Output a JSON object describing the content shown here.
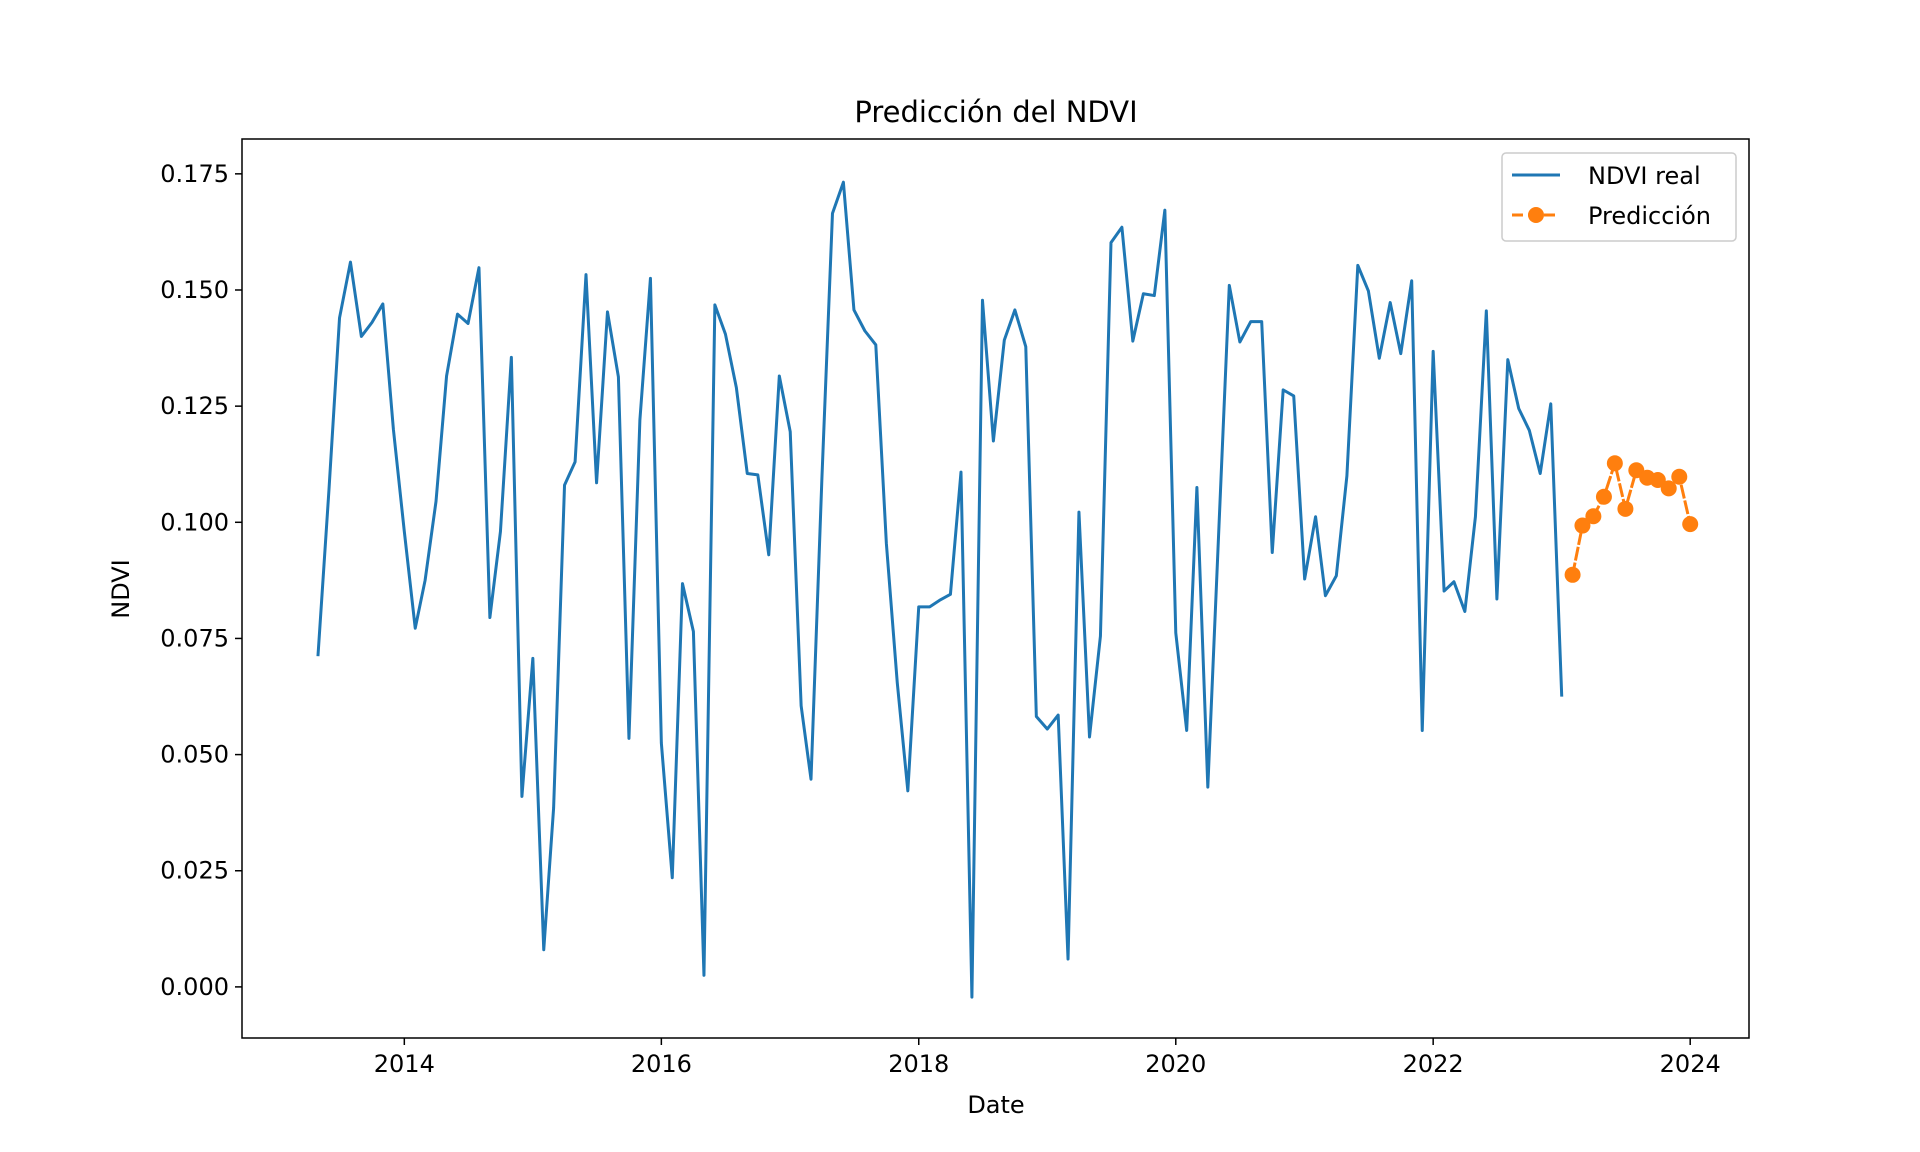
{
  "chart_data": {
    "type": "line",
    "title": "Predicción del NDVI",
    "xlabel": "Date",
    "ylabel": "NDVI",
    "xlim": [
      "2012-09-27",
      "2024-06-16"
    ],
    "ylim": [
      -0.011,
      0.1825
    ],
    "xticks": [
      {
        "date": "2014-01-01",
        "label": "2014"
      },
      {
        "date": "2016-01-01",
        "label": "2016"
      },
      {
        "date": "2018-01-01",
        "label": "2018"
      },
      {
        "date": "2020-01-01",
        "label": "2020"
      },
      {
        "date": "2022-01-01",
        "label": "2022"
      },
      {
        "date": "2024-01-01",
        "label": "2024"
      }
    ],
    "yticks": [
      {
        "value": 0.0,
        "label": "0.000"
      },
      {
        "value": 0.025,
        "label": "0.025"
      },
      {
        "value": 0.05,
        "label": "0.050"
      },
      {
        "value": 0.075,
        "label": "0.075"
      },
      {
        "value": 0.1,
        "label": "0.100"
      },
      {
        "value": 0.125,
        "label": "0.125"
      },
      {
        "value": 0.15,
        "label": "0.150"
      },
      {
        "value": 0.175,
        "label": "0.175"
      }
    ],
    "grid": false,
    "legend_position": "top-right",
    "series": [
      {
        "name": "NDVI real",
        "color": "#1f77b4",
        "style": "solid",
        "marker": "none",
        "x": [
          "2013-05-01",
          "2013-06-01",
          "2013-07-01",
          "2013-08-01",
          "2013-09-01",
          "2013-10-01",
          "2013-11-01",
          "2013-12-01",
          "2014-01-01",
          "2014-02-01",
          "2014-03-01",
          "2014-04-01",
          "2014-05-01",
          "2014-06-01",
          "2014-07-01",
          "2014-08-01",
          "2014-09-01",
          "2014-10-01",
          "2014-11-01",
          "2014-12-01",
          "2015-01-01",
          "2015-02-01",
          "2015-03-01",
          "2015-04-01",
          "2015-05-01",
          "2015-06-01",
          "2015-07-01",
          "2015-08-01",
          "2015-09-01",
          "2015-10-01",
          "2015-11-01",
          "2015-12-01",
          "2016-01-01",
          "2016-02-01",
          "2016-03-01",
          "2016-04-01",
          "2016-05-01",
          "2016-06-01",
          "2016-07-01",
          "2016-08-01",
          "2016-09-01",
          "2016-10-01",
          "2016-11-01",
          "2016-12-01",
          "2017-01-01",
          "2017-02-01",
          "2017-03-01",
          "2017-04-01",
          "2017-05-01",
          "2017-06-01",
          "2017-07-01",
          "2017-08-01",
          "2017-09-01",
          "2017-10-01",
          "2017-11-01",
          "2017-12-01",
          "2018-01-01",
          "2018-02-01",
          "2018-03-01",
          "2018-04-01",
          "2018-05-01",
          "2018-06-01",
          "2018-07-01",
          "2018-08-01",
          "2018-09-01",
          "2018-10-01",
          "2018-11-01",
          "2018-12-01",
          "2019-01-01",
          "2019-02-01",
          "2019-03-01",
          "2019-04-01",
          "2019-05-01",
          "2019-06-01",
          "2019-07-01",
          "2019-08-01",
          "2019-09-01",
          "2019-10-01",
          "2019-11-01",
          "2019-12-01",
          "2020-01-01",
          "2020-02-01",
          "2020-03-01",
          "2020-04-01",
          "2020-05-01",
          "2020-06-01",
          "2020-07-01",
          "2020-08-01",
          "2020-09-01",
          "2020-10-01",
          "2020-11-01",
          "2020-12-01",
          "2021-01-01",
          "2021-02-01",
          "2021-03-01",
          "2021-04-01",
          "2021-05-01",
          "2021-06-01",
          "2021-07-01",
          "2021-08-01",
          "2021-09-01",
          "2021-10-01",
          "2021-11-01",
          "2021-12-01",
          "2022-01-01",
          "2022-02-01",
          "2022-03-01",
          "2022-04-01",
          "2022-05-01",
          "2022-06-01",
          "2022-07-01",
          "2022-08-01",
          "2022-09-01",
          "2022-10-01",
          "2022-11-01",
          "2022-12-01",
          "2023-01-01"
        ],
        "y": [
          0.0715,
          0.107,
          0.144,
          0.156,
          0.14,
          0.143,
          0.147,
          0.12,
          0.098,
          0.0772,
          0.0875,
          0.1045,
          0.1315,
          0.1448,
          0.1428,
          0.1548,
          0.0795,
          0.098,
          0.1355,
          0.041,
          0.0707,
          0.008,
          0.0385,
          0.108,
          0.113,
          0.1533,
          0.1085,
          0.1453,
          0.1313,
          0.0535,
          0.122,
          0.1525,
          0.0525,
          0.0235,
          0.0868,
          0.0765,
          0.0025,
          0.1468,
          0.1405,
          0.129,
          0.1105,
          0.1102,
          0.093,
          0.1315,
          0.1195,
          0.0605,
          0.0447,
          0.1095,
          0.1665,
          0.1732,
          0.1457,
          0.1412,
          0.1382,
          0.0955,
          0.0655,
          0.0422,
          0.0818,
          0.0818,
          0.0832,
          0.0845,
          0.1108,
          -0.0022,
          0.1478,
          0.1175,
          0.1392,
          0.1457,
          0.1378,
          0.0582,
          0.0555,
          0.0585,
          0.006,
          0.1022,
          0.0538,
          0.0755,
          0.1602,
          0.1635,
          0.139,
          0.1492,
          0.1488,
          0.1672,
          0.0762,
          0.0552,
          0.1075,
          0.043,
          0.0962,
          0.151,
          0.1388,
          0.1432,
          0.1432,
          0.0935,
          0.1285,
          0.1272,
          0.0878,
          0.1012,
          0.0842,
          0.0885,
          0.11,
          0.1553,
          0.1498,
          0.1353,
          0.1473,
          0.1363,
          0.152,
          0.0552,
          0.1368,
          0.0852,
          0.0872,
          0.0808,
          0.1012,
          0.1455,
          0.0835,
          0.135,
          0.1245,
          0.1198,
          0.1105,
          0.1255,
          0.0628
        ]
      },
      {
        "name": "Predicción",
        "color": "#ff7f0e",
        "style": "dashed",
        "marker": "circle",
        "x": [
          "2023-02-01",
          "2023-03-01",
          "2023-04-01",
          "2023-05-01",
          "2023-06-01",
          "2023-07-01",
          "2023-08-01",
          "2023-09-01",
          "2023-10-01",
          "2023-11-01",
          "2023-12-01",
          "2024-01-01"
        ],
        "y": [
          0.0887,
          0.0993,
          0.1013,
          0.1055,
          0.1127,
          0.1029,
          0.1112,
          0.1096,
          0.1091,
          0.1073,
          0.1098,
          0.0996
        ]
      }
    ]
  }
}
